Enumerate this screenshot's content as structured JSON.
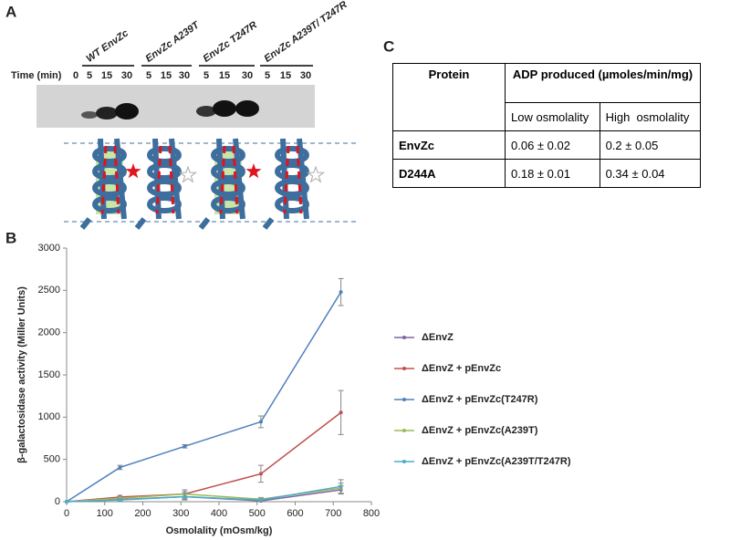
{
  "panel_a": {
    "label": "A",
    "groups": [
      "WT EnvZc",
      "EnvZc A239T",
      "EnvZc T247R",
      "EnvZc A239T/ T247R"
    ],
    "time_label": "Time (min)",
    "lanes": [
      "0",
      "5",
      "15",
      "30",
      "5",
      "15",
      "30",
      "5",
      "15",
      "30",
      "5",
      "15",
      "30"
    ]
  },
  "chart_data": {
    "type": "line",
    "label": "B",
    "x_label": "Osmolality (mOsm/kg)",
    "y_label": "β-galactosidase activity (Miller Units)",
    "x": [
      0,
      140,
      310,
      510,
      720
    ],
    "series": [
      {
        "name": "ΔEnvZ",
        "color": "#8064a2",
        "values": [
          0,
          25,
          60,
          10,
          140
        ],
        "errors": [
          0,
          15,
          30,
          10,
          50
        ]
      },
      {
        "name": "ΔEnvZ + pEnvZc",
        "color": "#c0504d",
        "values": [
          0,
          55,
          90,
          330,
          1055
        ],
        "errors": [
          0,
          20,
          30,
          100,
          260
        ]
      },
      {
        "name": "ΔEnvZ + pEnvZc(T247R)",
        "color": "#4f81bd",
        "values": [
          0,
          405,
          655,
          945,
          2480
        ],
        "errors": [
          0,
          25,
          20,
          70,
          160
        ]
      },
      {
        "name": "ΔEnvZ + pEnvZc(A239T)",
        "color": "#9bbb59",
        "values": [
          0,
          40,
          90,
          30,
          160
        ],
        "errors": [
          0,
          20,
          50,
          20,
          60
        ]
      },
      {
        "name": "ΔEnvZ + pEnvZc(A239T/T247R)",
        "color": "#4bacc6",
        "values": [
          0,
          20,
          60,
          20,
          180
        ],
        "errors": [
          0,
          15,
          40,
          15,
          80
        ]
      }
    ],
    "xlim": [
      0,
      800
    ],
    "xticks": [
      0,
      100,
      200,
      300,
      400,
      500,
      600,
      700,
      800
    ],
    "ylim": [
      0,
      3000
    ],
    "yticks": [
      0,
      500,
      1000,
      1500,
      2000,
      2500,
      3000
    ],
    "legend": "right"
  },
  "panel_c": {
    "label": "C",
    "header": [
      "Protein",
      "ADP produced (µmoles/min/mg)"
    ],
    "subheader": [
      "Low osmolality",
      "High  osmolality"
    ],
    "rows": [
      [
        "EnvZc",
        "0.06 ± 0.02",
        "0.2 ± 0.05"
      ],
      [
        "D244A",
        "0.18 ± 0.01",
        "0.34 ± 0.04"
      ]
    ]
  }
}
